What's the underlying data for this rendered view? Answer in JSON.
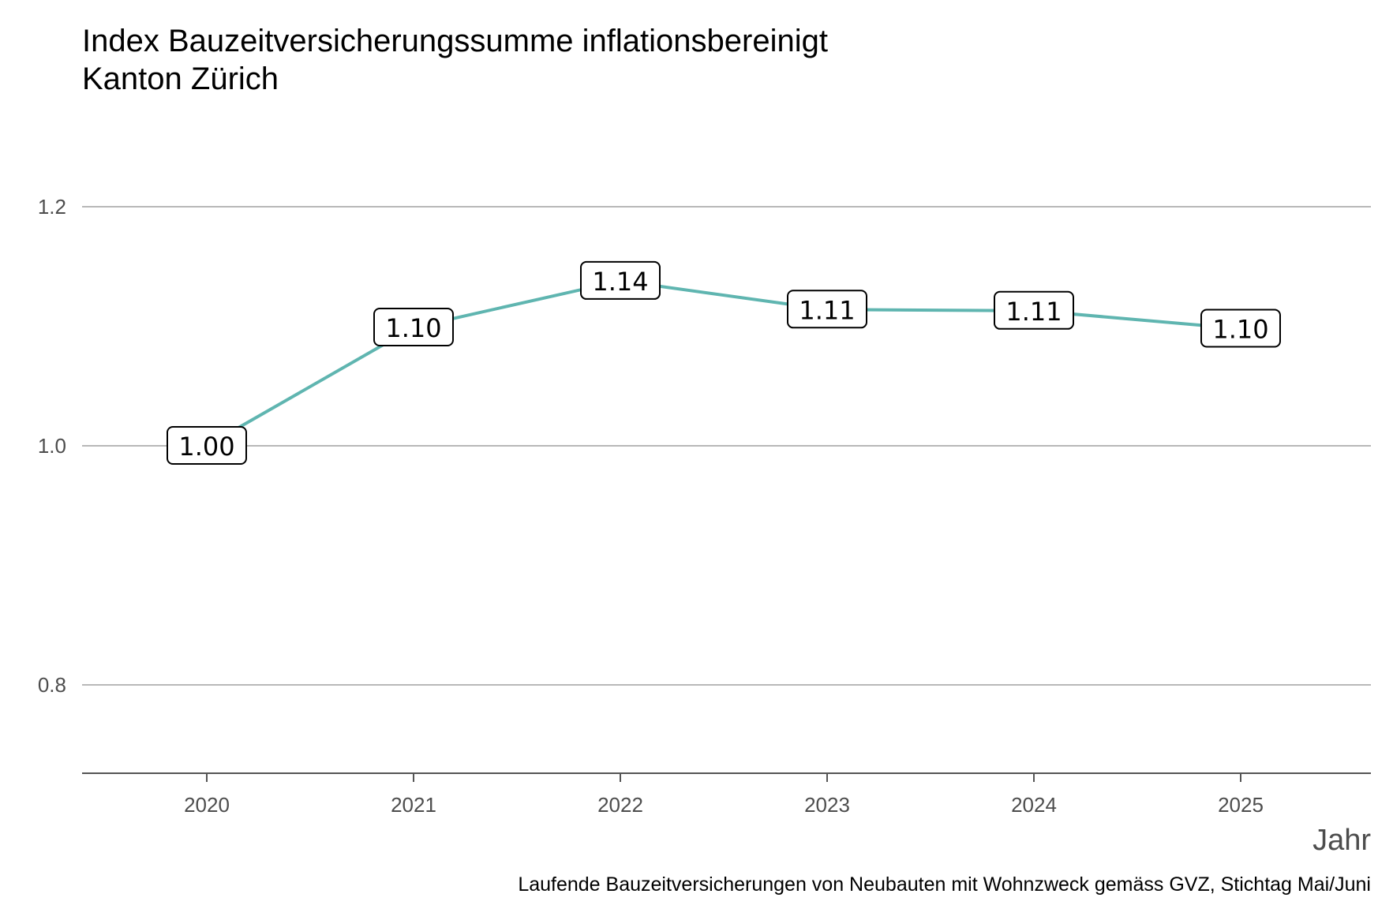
{
  "chart_data": {
    "type": "line",
    "title": "Index Bauzeitversicherungssumme inflationsbereinigt",
    "subtitle": "Kanton Zürich",
    "xlabel": "Jahr",
    "ylabel": "",
    "caption": "Laufende Bauzeitversicherungen von Neubauten mit Wohnzweck gemäss GVZ, Stichtag Mai/Juni",
    "x": [
      2020,
      2021,
      2022,
      2023,
      2024,
      2025
    ],
    "values": [
      1.0,
      1.099,
      1.138,
      1.114,
      1.113,
      1.098
    ],
    "data_labels": [
      "1.00",
      "1.10",
      "1.14",
      "1.11",
      "1.11",
      "1.10"
    ],
    "xticks": [
      "2020",
      "2021",
      "2022",
      "2023",
      "2024",
      "2025"
    ],
    "yticks": [
      "0.8",
      "1.0",
      "1.2"
    ],
    "ytick_values": [
      0.8,
      1.0,
      1.2
    ],
    "ylim": [
      0.726,
      1.2
    ],
    "xlim": [
      2019.4,
      2025.6
    ],
    "grid": "horizontal major",
    "line_color": "#5fb5b0",
    "legend": "none"
  }
}
